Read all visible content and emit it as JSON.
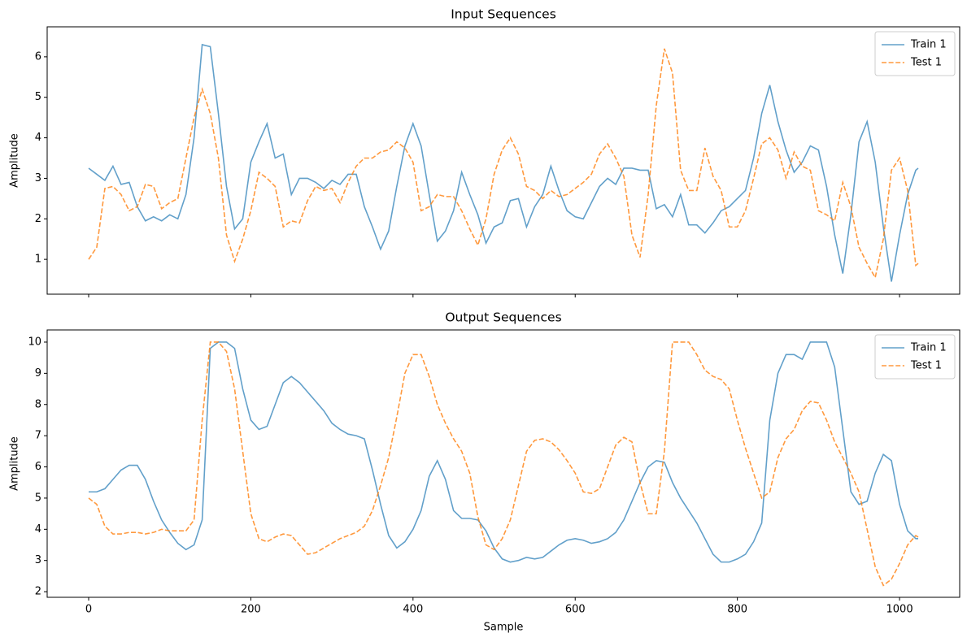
{
  "chart_data": [
    {
      "type": "line",
      "title": "Input Sequences",
      "ylabel": "Amplitude",
      "x": [
        0,
        10,
        20,
        30,
        40,
        50,
        60,
        70,
        80,
        90,
        100,
        110,
        120,
        130,
        140,
        150,
        160,
        170,
        180,
        190,
        200,
        210,
        220,
        230,
        240,
        250,
        260,
        270,
        280,
        290,
        300,
        310,
        320,
        330,
        340,
        350,
        360,
        370,
        380,
        390,
        400,
        410,
        420,
        430,
        440,
        450,
        460,
        470,
        480,
        490,
        500,
        510,
        520,
        530,
        540,
        550,
        560,
        570,
        580,
        590,
        600,
        610,
        620,
        630,
        640,
        650,
        660,
        670,
        680,
        690,
        700,
        710,
        720,
        730,
        740,
        750,
        760,
        770,
        780,
        790,
        800,
        810,
        820,
        830,
        840,
        850,
        860,
        870,
        880,
        890,
        900,
        910,
        920,
        930,
        940,
        950,
        960,
        970,
        980,
        990,
        1000,
        1010,
        1020,
        1023
      ],
      "series": [
        {
          "name": "Train 1",
          "color": "#1f77b4",
          "linestyle": "solid",
          "values": [
            3.25,
            3.1,
            2.95,
            3.3,
            2.85,
            2.9,
            2.3,
            1.95,
            2.05,
            1.95,
            2.1,
            2.0,
            2.6,
            4.0,
            6.3,
            6.25,
            4.6,
            2.8,
            1.75,
            2.0,
            3.4,
            3.9,
            4.35,
            3.5,
            3.6,
            2.6,
            3.0,
            3.0,
            2.9,
            2.75,
            2.95,
            2.85,
            3.1,
            3.1,
            2.3,
            1.8,
            1.25,
            1.7,
            2.8,
            3.8,
            4.35,
            3.8,
            2.6,
            1.45,
            1.7,
            2.2,
            3.15,
            2.6,
            2.1,
            1.4,
            1.8,
            1.9,
            2.45,
            2.5,
            1.8,
            2.3,
            2.6,
            3.3,
            2.7,
            2.2,
            2.05,
            2.0,
            2.4,
            2.8,
            3.0,
            2.85,
            3.25,
            3.25,
            3.2,
            3.2,
            2.25,
            2.35,
            2.05,
            2.6,
            1.85,
            1.85,
            1.65,
            1.9,
            2.2,
            2.3,
            2.5,
            2.7,
            3.5,
            4.6,
            5.3,
            4.4,
            3.7,
            3.15,
            3.4,
            3.8,
            3.7,
            2.8,
            1.6,
            0.65,
            2.1,
            3.9,
            4.4,
            3.4,
            1.8,
            0.45,
            1.6,
            2.6,
            3.2,
            3.25
          ]
        },
        {
          "name": "Test 1",
          "color": "#ff7f0e",
          "linestyle": "dashed",
          "values": [
            1.0,
            1.3,
            2.75,
            2.8,
            2.6,
            2.2,
            2.3,
            2.85,
            2.8,
            2.25,
            2.4,
            2.5,
            3.5,
            4.5,
            5.2,
            4.6,
            3.5,
            1.6,
            0.95,
            1.5,
            2.2,
            3.15,
            3.0,
            2.8,
            1.8,
            1.95,
            1.9,
            2.45,
            2.8,
            2.7,
            2.75,
            2.4,
            2.9,
            3.3,
            3.5,
            3.5,
            3.65,
            3.7,
            3.9,
            3.75,
            3.4,
            2.2,
            2.3,
            2.6,
            2.55,
            2.55,
            2.2,
            1.75,
            1.35,
            2.0,
            3.1,
            3.7,
            4.0,
            3.6,
            2.8,
            2.7,
            2.5,
            2.7,
            2.55,
            2.6,
            2.75,
            2.9,
            3.1,
            3.6,
            3.85,
            3.5,
            3.05,
            1.6,
            1.05,
            2.6,
            4.8,
            6.2,
            5.6,
            3.2,
            2.7,
            2.7,
            3.75,
            3.05,
            2.7,
            1.8,
            1.8,
            2.2,
            3.0,
            3.85,
            4.0,
            3.7,
            3.0,
            3.65,
            3.3,
            3.2,
            2.2,
            2.1,
            1.95,
            2.9,
            2.3,
            1.3,
            0.9,
            0.55,
            1.5,
            3.2,
            3.5,
            2.7,
            0.85,
            0.9
          ]
        }
      ],
      "xlim": [
        -51.15,
        1074.15
      ],
      "ylim": [
        0.14,
        6.74
      ],
      "xticks": [
        0,
        200,
        400,
        600,
        800,
        1000
      ],
      "xtick_labels": false,
      "yticks": [
        1,
        2,
        3,
        4,
        5,
        6
      ],
      "legend": "upper right"
    },
    {
      "type": "line",
      "title": "Output Sequences",
      "xlabel": "Sample",
      "ylabel": "Amplitude",
      "x": [
        0,
        10,
        20,
        30,
        40,
        50,
        60,
        70,
        80,
        90,
        100,
        110,
        120,
        130,
        140,
        150,
        160,
        170,
        180,
        190,
        200,
        210,
        220,
        230,
        240,
        250,
        260,
        270,
        280,
        290,
        300,
        310,
        320,
        330,
        340,
        350,
        360,
        370,
        380,
        390,
        400,
        410,
        420,
        430,
        440,
        450,
        460,
        470,
        480,
        490,
        500,
        510,
        520,
        530,
        540,
        550,
        560,
        570,
        580,
        590,
        600,
        610,
        620,
        630,
        640,
        650,
        660,
        670,
        680,
        690,
        700,
        710,
        720,
        730,
        740,
        750,
        760,
        770,
        780,
        790,
        800,
        810,
        820,
        830,
        840,
        850,
        860,
        870,
        880,
        890,
        900,
        910,
        920,
        930,
        940,
        950,
        960,
        970,
        980,
        990,
        1000,
        1010,
        1020,
        1023
      ],
      "series": [
        {
          "name": "Train 1",
          "color": "#1f77b4",
          "linestyle": "solid",
          "values": [
            5.2,
            5.2,
            5.3,
            5.6,
            5.9,
            6.05,
            6.05,
            5.6,
            4.9,
            4.3,
            3.9,
            3.55,
            3.35,
            3.5,
            4.3,
            9.8,
            10.0,
            10.0,
            9.8,
            8.5,
            7.5,
            7.2,
            7.3,
            8.0,
            8.7,
            8.9,
            8.7,
            8.4,
            8.1,
            7.8,
            7.4,
            7.2,
            7.05,
            7.0,
            6.9,
            5.9,
            4.8,
            3.8,
            3.4,
            3.6,
            4.0,
            4.6,
            5.7,
            6.2,
            5.6,
            4.6,
            4.35,
            4.35,
            4.3,
            3.95,
            3.4,
            3.05,
            2.95,
            3.0,
            3.1,
            3.05,
            3.1,
            3.3,
            3.5,
            3.65,
            3.7,
            3.65,
            3.55,
            3.6,
            3.7,
            3.9,
            4.3,
            4.9,
            5.5,
            6.0,
            6.2,
            6.15,
            5.5,
            5.0,
            4.6,
            4.2,
            3.7,
            3.2,
            2.95,
            2.95,
            3.05,
            3.2,
            3.6,
            4.2,
            7.5,
            9.0,
            9.6,
            9.6,
            9.45,
            10.0,
            10.0,
            10.0,
            9.2,
            7.2,
            5.2,
            4.8,
            4.9,
            5.8,
            6.4,
            6.2,
            4.8,
            3.95,
            3.7,
            3.7
          ]
        },
        {
          "name": "Test 1",
          "color": "#ff7f0e",
          "linestyle": "dashed",
          "values": [
            5.0,
            4.8,
            4.1,
            3.85,
            3.85,
            3.9,
            3.9,
            3.85,
            3.9,
            4.0,
            3.95,
            3.95,
            3.95,
            4.3,
            7.5,
            10.0,
            10.0,
            9.7,
            8.5,
            6.5,
            4.5,
            3.7,
            3.6,
            3.75,
            3.85,
            3.8,
            3.5,
            3.2,
            3.25,
            3.4,
            3.55,
            3.7,
            3.8,
            3.9,
            4.1,
            4.6,
            5.4,
            6.3,
            7.6,
            9.0,
            9.6,
            9.6,
            8.9,
            8.0,
            7.4,
            6.9,
            6.5,
            5.8,
            4.4,
            3.5,
            3.35,
            3.7,
            4.3,
            5.4,
            6.5,
            6.85,
            6.9,
            6.8,
            6.55,
            6.2,
            5.8,
            5.2,
            5.15,
            5.3,
            6.0,
            6.7,
            6.95,
            6.8,
            5.5,
            4.5,
            4.5,
            6.5,
            10.0,
            10.0,
            10.0,
            9.6,
            9.1,
            8.9,
            8.8,
            8.5,
            7.5,
            6.6,
            5.8,
            5.0,
            5.2,
            6.3,
            6.9,
            7.2,
            7.8,
            8.1,
            8.05,
            7.5,
            6.8,
            6.3,
            5.8,
            5.2,
            4.0,
            2.8,
            2.2,
            2.4,
            2.9,
            3.5,
            3.8,
            3.75
          ]
        }
      ],
      "xlim": [
        -51.15,
        1074.15
      ],
      "ylim": [
        1.82,
        10.39
      ],
      "xticks": [
        0,
        200,
        400,
        600,
        800,
        1000
      ],
      "xtick_labels": true,
      "yticks": [
        2,
        3,
        4,
        5,
        6,
        7,
        8,
        9,
        10
      ],
      "legend": "upper right"
    }
  ]
}
